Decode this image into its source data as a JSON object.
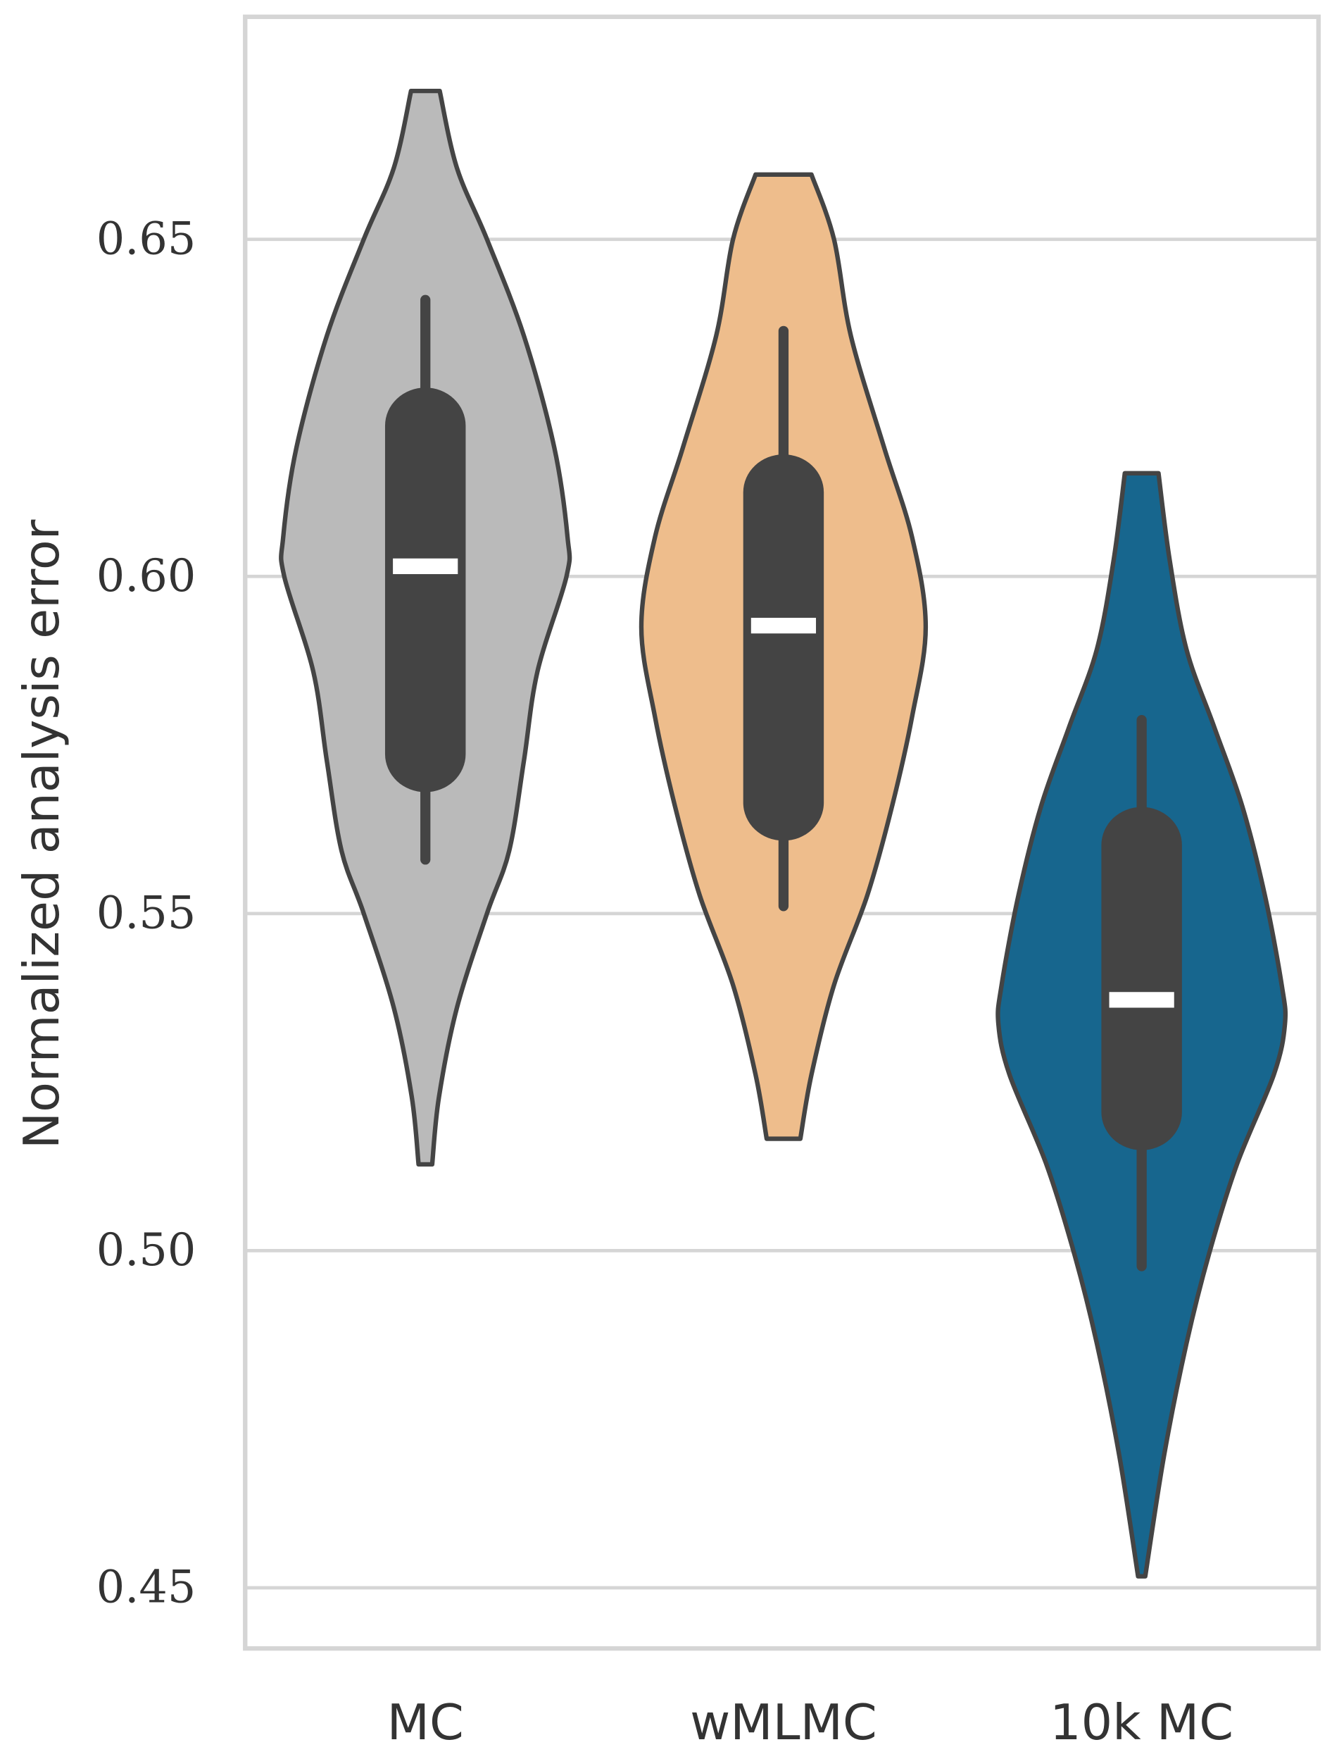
{
  "chart_data": {
    "type": "violin",
    "title": "",
    "xlabel": "",
    "ylabel": "Normalized analysis error",
    "ylim": [
      0.441,
      0.683
    ],
    "yticks": [
      "0.45",
      "0.50",
      "0.55",
      "0.60",
      "0.65"
    ],
    "ytick_values": [
      0.45,
      0.5,
      0.55,
      0.6,
      0.65
    ],
    "grid": "horizontal",
    "categories": [
      "MC",
      "wMLMC",
      "10k MC"
    ],
    "series": [
      {
        "category": "MC",
        "color": "#bababa",
        "min": 0.5128,
        "max": 0.672,
        "whisker_low": 0.558,
        "whisker_high": 0.641,
        "q1": 0.568,
        "q3": 0.628,
        "median": 0.6015,
        "density": [
          [
            0.672,
            0.04
          ],
          [
            0.6606,
            0.088
          ],
          [
            0.65,
            0.172
          ],
          [
            0.6357,
            0.275
          ],
          [
            0.6191,
            0.36
          ],
          [
            0.6058,
            0.397
          ],
          [
            0.6,
            0.394
          ],
          [
            0.5859,
            0.313
          ],
          [
            0.5726,
            0.275
          ],
          [
            0.5593,
            0.234
          ],
          [
            0.55,
            0.172
          ],
          [
            0.536,
            0.088
          ],
          [
            0.5228,
            0.038
          ],
          [
            0.5128,
            0.019
          ]
        ]
      },
      {
        "category": "wMLMC",
        "color": "#eebd8c",
        "min": 0.5166,
        "max": 0.6596,
        "whisker_low": 0.5511,
        "whisker_high": 0.6364,
        "q1": 0.5608,
        "q3": 0.6181,
        "median": 0.5927,
        "density": [
          [
            0.6596,
            0.078
          ],
          [
            0.65,
            0.141
          ],
          [
            0.6357,
            0.188
          ],
          [
            0.6191,
            0.281
          ],
          [
            0.6058,
            0.359
          ],
          [
            0.5925,
            0.397
          ],
          [
            0.5792,
            0.359
          ],
          [
            0.5659,
            0.303
          ],
          [
            0.5527,
            0.234
          ],
          [
            0.5394,
            0.141
          ],
          [
            0.5261,
            0.078
          ],
          [
            0.5166,
            0.047
          ]
        ]
      },
      {
        "category": "10k MC",
        "color": "#17668e",
        "min": 0.4517,
        "max": 0.6153,
        "whisker_low": 0.4977,
        "whisker_high": 0.5787,
        "q1": 0.5149,
        "q3": 0.5658,
        "median": 0.5372,
        "density": [
          [
            0.6153,
            0.047
          ],
          [
            0.6025,
            0.078
          ],
          [
            0.5892,
            0.125
          ],
          [
            0.5776,
            0.203
          ],
          [
            0.5659,
            0.281
          ],
          [
            0.5527,
            0.344
          ],
          [
            0.5394,
            0.391
          ],
          [
            0.5336,
            0.4
          ],
          [
            0.5261,
            0.369
          ],
          [
            0.5128,
            0.266
          ],
          [
            0.4995,
            0.188
          ],
          [
            0.4862,
            0.125
          ],
          [
            0.4696,
            0.0625
          ],
          [
            0.4517,
            0.01
          ]
        ]
      }
    ]
  }
}
